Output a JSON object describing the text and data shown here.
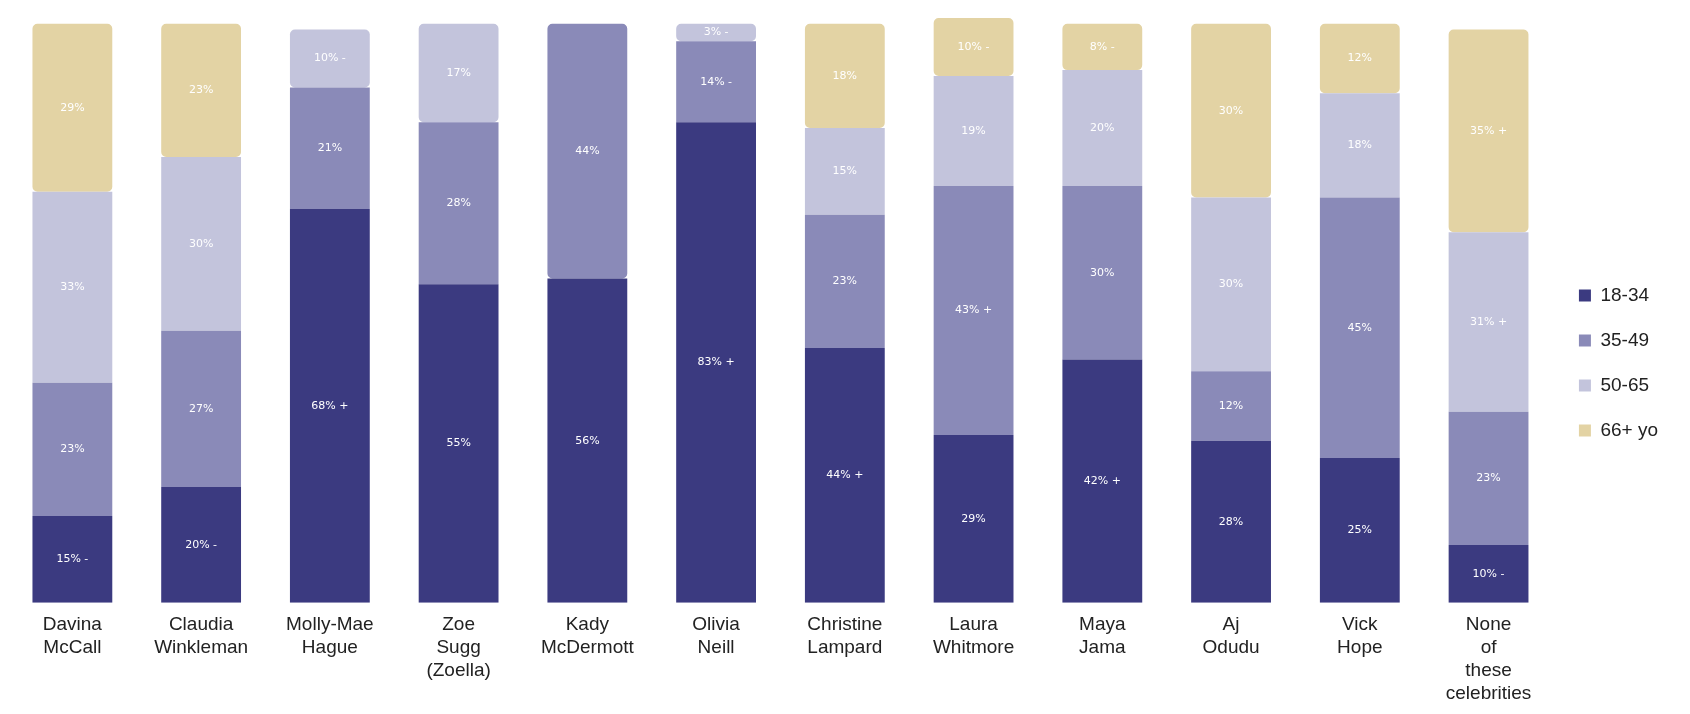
{
  "chart_data": {
    "type": "bar",
    "stacked": true,
    "legend": "right",
    "categories": [
      "Davina McCall",
      "Claudia Winkleman",
      "Molly-Mae Hague",
      "Zoe Sugg (Zoella)",
      "Kady McDermott",
      "Olivia Neill",
      "Christine Lampard",
      "Laura Whitmore",
      "Maya Jama",
      "Aj Odudu",
      "Vick Hope",
      "None of these celebrities"
    ],
    "series": [
      {
        "name": "18-34",
        "color": "#3b3a80",
        "values": [
          15,
          20,
          68,
          55,
          56,
          83,
          44,
          29,
          42,
          28,
          25,
          10
        ],
        "value_labels": [
          "15% -",
          "20% -",
          "68% +",
          "55%",
          "56%",
          "83% +",
          "44% +",
          "29%",
          "42% +",
          "28%",
          "25%",
          "10% -"
        ]
      },
      {
        "name": "35-49",
        "color": "#8a8ab8",
        "values": [
          23,
          27,
          21,
          28,
          44,
          14,
          23,
          43,
          30,
          12,
          45,
          23
        ],
        "value_labels": [
          "23%",
          "27%",
          "21%",
          "28%",
          "44%",
          "14% -",
          "23%",
          "43% +",
          "30%",
          "12%",
          "45%",
          "23%"
        ]
      },
      {
        "name": "50-65",
        "color": "#c3c4dc",
        "values": [
          33,
          30,
          10,
          17,
          null,
          3,
          15,
          19,
          20,
          30,
          18,
          31
        ],
        "value_labels": [
          "33%",
          "30%",
          "10% -",
          "17%",
          null,
          "3% -",
          "15%",
          "19%",
          "20%",
          "30%",
          "18%",
          "31% +"
        ]
      },
      {
        "name": "66+ yo",
        "color": "#e3d3a4",
        "values": [
          29,
          23,
          null,
          null,
          null,
          null,
          18,
          10,
          8,
          30,
          12,
          35
        ],
        "value_labels": [
          "29%",
          "23%",
          null,
          null,
          null,
          null,
          "18%",
          "10% -",
          "8% -",
          "30%",
          "12%",
          "35% +"
        ]
      }
    ]
  }
}
